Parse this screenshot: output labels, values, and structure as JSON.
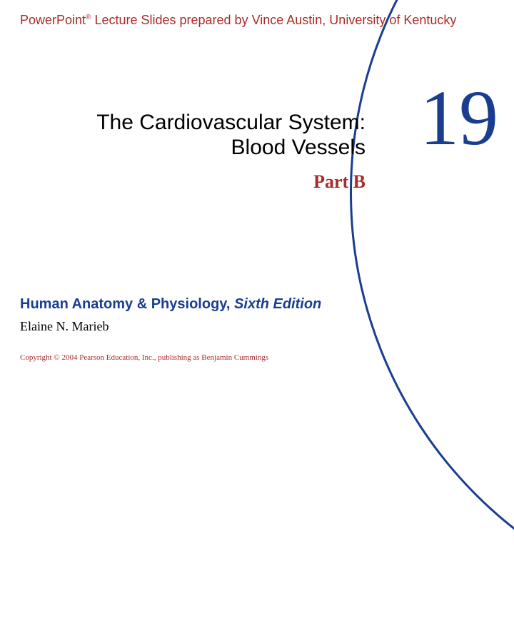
{
  "colors": {
    "accent_red": "#aa2b2b",
    "accent_blue": "#1a3d8f",
    "arc_border": "#1a3d8f",
    "black": "#000000"
  },
  "header": {
    "prefix": "PowerPoint",
    "sup": "®",
    "rest": " Lecture Slides prepared by Vince Austin, University of Kentucky"
  },
  "chapter": {
    "number": "19",
    "title_line1": "The Cardiovascular System:",
    "title_line2": "Blood Vessels",
    "part": "Part B"
  },
  "book": {
    "title": "Human Anatomy & Physiology, ",
    "edition": "Sixth Edition",
    "author": "Elaine N. Marieb"
  },
  "copyright": "Copyright © 2004 Pearson Education, Inc., publishing as Benjamin Cummings"
}
